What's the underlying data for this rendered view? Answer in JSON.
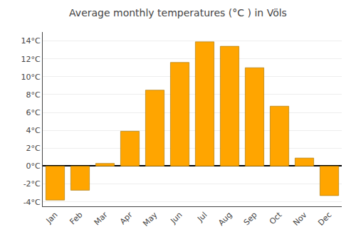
{
  "chart_data": {
    "type": "bar",
    "title": "Average monthly temperatures (°C ) in Völs",
    "categories": [
      "Jan",
      "Feb",
      "Mar",
      "Apr",
      "May",
      "Jun",
      "Jul",
      "Aug",
      "Sep",
      "Oct",
      "Nov",
      "Dec"
    ],
    "values": [
      -3.8,
      -2.7,
      0.3,
      3.9,
      8.5,
      11.6,
      13.9,
      13.4,
      11.0,
      6.7,
      0.9,
      -3.3
    ],
    "color": "#FFA500",
    "ylim": [
      -4.5,
      15.0
    ],
    "yticks": [
      {
        "value": -4,
        "label": "-4°C"
      },
      {
        "value": -2,
        "label": "-2°C"
      },
      {
        "value": 0,
        "label": "0°C"
      },
      {
        "value": 2,
        "label": "2°C"
      },
      {
        "value": 4,
        "label": "4°C"
      },
      {
        "value": 6,
        "label": "6°C"
      },
      {
        "value": 8,
        "label": "8°C"
      },
      {
        "value": 10,
        "label": "10°C"
      },
      {
        "value": 12,
        "label": "12°C"
      },
      {
        "value": 14,
        "label": "14°C"
      }
    ],
    "grid": true
  }
}
